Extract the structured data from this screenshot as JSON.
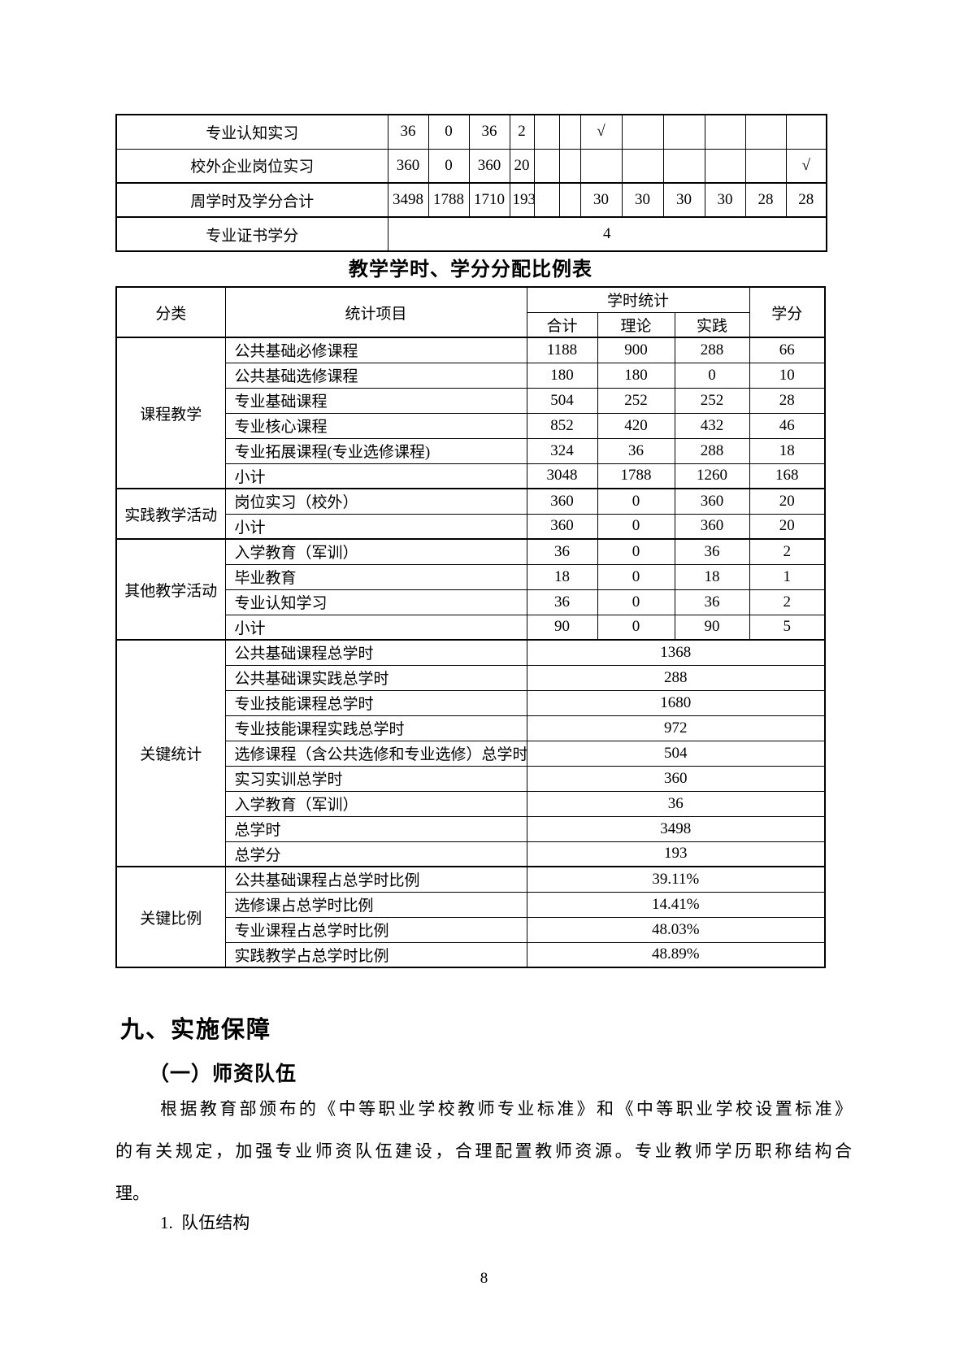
{
  "weekly_table": {
    "rows": [
      {
        "label": "专业认知实习",
        "values": [
          "36",
          "0",
          "36",
          "2"
        ],
        "mid": [
          "",
          ""
        ],
        "terms": [
          "√",
          "",
          "",
          "",
          "",
          ""
        ]
      },
      {
        "label": "校外企业岗位实习",
        "values": [
          "360",
          "0",
          "360",
          "20"
        ],
        "mid": [
          "",
          ""
        ],
        "terms": [
          "",
          "",
          "",
          "",
          "",
          "√"
        ]
      },
      {
        "label": "周学时及学分合计",
        "values": [
          "3498",
          "1788",
          "1710",
          "193"
        ],
        "mid": [
          "",
          ""
        ],
        "terms": [
          "30",
          "30",
          "30",
          "30",
          "28",
          "28"
        ]
      },
      {
        "label": "专业证书学分",
        "span_value": "4"
      }
    ]
  },
  "ratio_table": {
    "title": "教学学时、学分分配比例表",
    "headers": {
      "category": "分类",
      "item": "统计项目",
      "hours_group": "学时统计",
      "total": "合计",
      "theory": "理论",
      "practice": "实践",
      "credits": "学分"
    },
    "sections": [
      {
        "category": "课程教学",
        "rows": [
          {
            "item": "公共基础必修课程",
            "total": "1188",
            "theory": "900",
            "practice": "288",
            "credits": "66"
          },
          {
            "item": "公共基础选修课程",
            "total": "180",
            "theory": "180",
            "practice": "0",
            "credits": "10"
          },
          {
            "item": "专业基础课程",
            "total": "504",
            "theory": "252",
            "practice": "252",
            "credits": "28"
          },
          {
            "item": "专业核心课程",
            "total": "852",
            "theory": "420",
            "practice": "432",
            "credits": "46"
          },
          {
            "item": "专业拓展课程(专业选修课程)",
            "total": "324",
            "theory": "36",
            "practice": "288",
            "credits": "18"
          },
          {
            "item": "小计",
            "total": "3048",
            "theory": "1788",
            "practice": "1260",
            "credits": "168"
          }
        ]
      },
      {
        "category": "实践教学活动",
        "rows": [
          {
            "item": "岗位实习（校外）",
            "total": "360",
            "theory": "0",
            "practice": "360",
            "credits": "20"
          },
          {
            "item": "小计",
            "total": "360",
            "theory": "0",
            "practice": "360",
            "credits": "20"
          }
        ]
      },
      {
        "category": "其他教学活动",
        "rows": [
          {
            "item": "入学教育（军训）",
            "total": "36",
            "theory": "0",
            "practice": "36",
            "credits": "2"
          },
          {
            "item": "毕业教育",
            "total": "18",
            "theory": "0",
            "practice": "18",
            "credits": "1"
          },
          {
            "item": "专业认知学习",
            "total": "36",
            "theory": "0",
            "practice": "36",
            "credits": "2"
          },
          {
            "item": "小计",
            "total": "90",
            "theory": "0",
            "practice": "90",
            "credits": "5"
          }
        ]
      },
      {
        "category": "关键统计",
        "rows": [
          {
            "item": "公共基础课程总学时",
            "value": "1368"
          },
          {
            "item": "公共基础课实践总学时",
            "value": "288"
          },
          {
            "item": "专业技能课程总学时",
            "value": "1680"
          },
          {
            "item": "专业技能课程实践总学时",
            "value": "972"
          },
          {
            "item": "选修课程（含公共选修和专业选修）总学时",
            "value": "504"
          },
          {
            "item": "实习实训总学时",
            "value": "360"
          },
          {
            "item": "入学教育（军训）",
            "value": "36"
          },
          {
            "item": "总学时",
            "value": "3498"
          },
          {
            "item": "总学分",
            "value": "193"
          }
        ]
      },
      {
        "category": "关键比例",
        "rows": [
          {
            "item": "公共基础课程占总学时比例",
            "value": "39.11%"
          },
          {
            "item": "选修课占总学时比例",
            "value": "14.41%"
          },
          {
            "item": "专业课程占总学时比例",
            "value": "48.03%"
          },
          {
            "item": "实践教学占总学时比例",
            "value": "48.89%"
          }
        ]
      }
    ]
  },
  "section": {
    "heading": "九、实施保障",
    "subheading": "（一）师资队伍",
    "paragraph_lines": [
      "根据教育部颁布的《中等职业学校教师专业标准》和《中等职业学校设置标准》",
      "的有关规定，加强专业师资队伍建设，合理配置教师资源。专业教师学历职称结构合",
      "理。"
    ],
    "list_item": "1.  队伍结构"
  },
  "page_number": "8"
}
